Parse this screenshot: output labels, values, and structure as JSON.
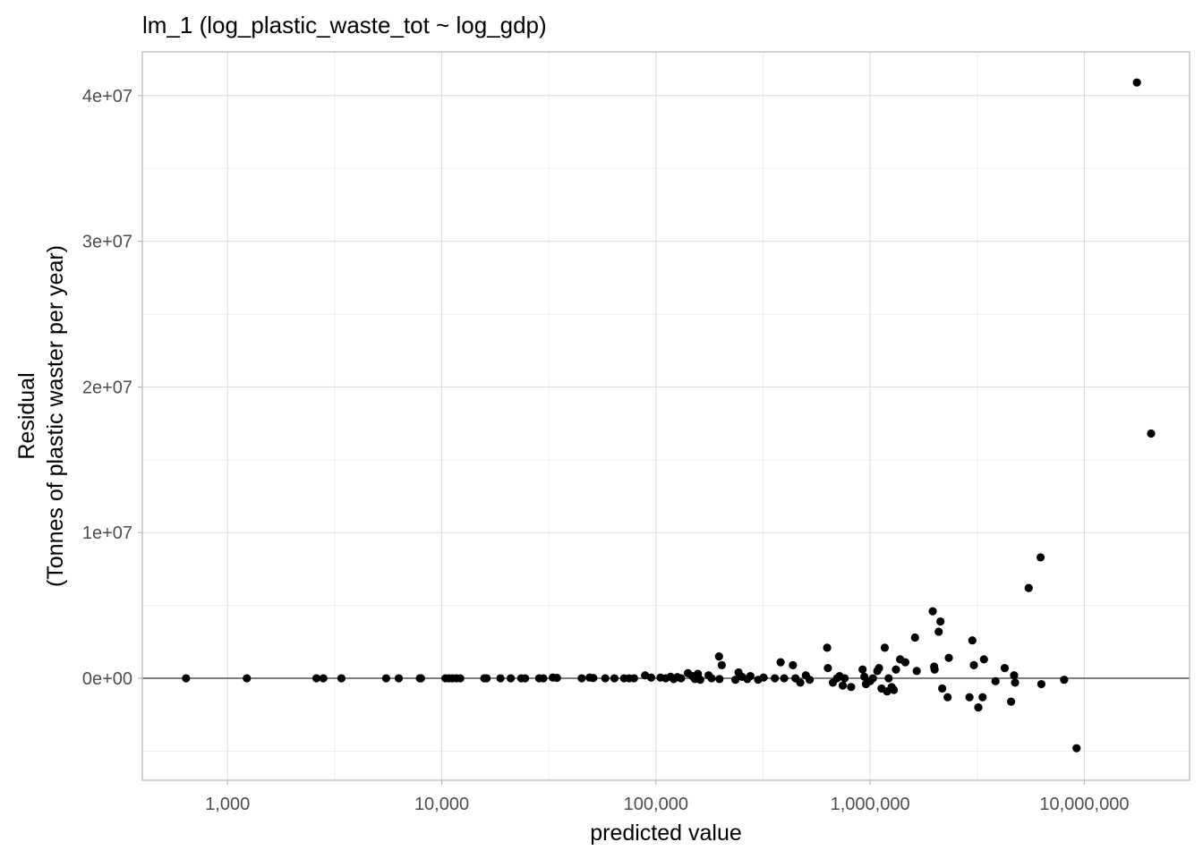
{
  "chart_data": {
    "type": "scatter",
    "title": "lm_1 (log_plastic_waste_tot ~ log_gdp)",
    "xlabel": "predicted value",
    "ylabel_lines": [
      "Residual",
      "(Tonnes of plastic waster per year)"
    ],
    "x_scale": "log10",
    "xlim": [
      400,
      31000000
    ],
    "ylim": [
      -7000000,
      43000000
    ],
    "x_ticks": [
      {
        "value": 1000,
        "label": "1,000"
      },
      {
        "value": 10000,
        "label": "10,000"
      },
      {
        "value": 100000,
        "label": "100,000"
      },
      {
        "value": 1000000,
        "label": "1,000,000"
      },
      {
        "value": 10000000,
        "label": "10,000,000"
      }
    ],
    "y_ticks": [
      {
        "value": 0,
        "label": "0e+00"
      },
      {
        "value": 10000000,
        "label": "1e+07"
      },
      {
        "value": 20000000,
        "label": "2e+07"
      },
      {
        "value": 30000000,
        "label": "3e+07"
      },
      {
        "value": 40000000,
        "label": "4e+07"
      }
    ],
    "hline": 0,
    "grid": true,
    "points": [
      {
        "x": 640,
        "y": 0
      },
      {
        "x": 1230,
        "y": 0
      },
      {
        "x": 2600,
        "y": 0
      },
      {
        "x": 2800,
        "y": 0
      },
      {
        "x": 3400,
        "y": 0
      },
      {
        "x": 5500,
        "y": 0
      },
      {
        "x": 6300,
        "y": 0
      },
      {
        "x": 7900,
        "y": 0
      },
      {
        "x": 8000,
        "y": 0
      },
      {
        "x": 10400,
        "y": 0
      },
      {
        "x": 10800,
        "y": 0
      },
      {
        "x": 11200,
        "y": 0
      },
      {
        "x": 11700,
        "y": 0
      },
      {
        "x": 12200,
        "y": 0
      },
      {
        "x": 15800,
        "y": 0
      },
      {
        "x": 16200,
        "y": 0
      },
      {
        "x": 18800,
        "y": 0
      },
      {
        "x": 21000,
        "y": 0
      },
      {
        "x": 23500,
        "y": 0
      },
      {
        "x": 24500,
        "y": 0
      },
      {
        "x": 28500,
        "y": 0
      },
      {
        "x": 29800,
        "y": 0
      },
      {
        "x": 33000,
        "y": 50000
      },
      {
        "x": 34500,
        "y": 30000
      },
      {
        "x": 45000,
        "y": 0
      },
      {
        "x": 49000,
        "y": 50000
      },
      {
        "x": 51000,
        "y": 20000
      },
      {
        "x": 58000,
        "y": 0
      },
      {
        "x": 64000,
        "y": 0
      },
      {
        "x": 71000,
        "y": 0
      },
      {
        "x": 75000,
        "y": 0
      },
      {
        "x": 79000,
        "y": 0
      },
      {
        "x": 89000,
        "y": 200000
      },
      {
        "x": 95000,
        "y": 50000
      },
      {
        "x": 105000,
        "y": 50000
      },
      {
        "x": 111000,
        "y": 0
      },
      {
        "x": 117000,
        "y": 100000
      },
      {
        "x": 121000,
        "y": -50000
      },
      {
        "x": 126000,
        "y": 80000
      },
      {
        "x": 131000,
        "y": 0
      },
      {
        "x": 141000,
        "y": 350000
      },
      {
        "x": 148000,
        "y": 150000
      },
      {
        "x": 152000,
        "y": -50000
      },
      {
        "x": 157000,
        "y": 300000
      },
      {
        "x": 161000,
        "y": -100000
      },
      {
        "x": 176000,
        "y": 200000
      },
      {
        "x": 182000,
        "y": 0
      },
      {
        "x": 197000,
        "y": 1500000
      },
      {
        "x": 203000,
        "y": 900000
      },
      {
        "x": 198000,
        "y": -50000
      },
      {
        "x": 235000,
        "y": -100000
      },
      {
        "x": 243000,
        "y": 400000
      },
      {
        "x": 252000,
        "y": 100000
      },
      {
        "x": 267000,
        "y": -50000
      },
      {
        "x": 276000,
        "y": 150000
      },
      {
        "x": 300000,
        "y": -100000
      },
      {
        "x": 318000,
        "y": 50000
      },
      {
        "x": 359000,
        "y": 0
      },
      {
        "x": 382000,
        "y": 1100000
      },
      {
        "x": 397000,
        "y": 0
      },
      {
        "x": 436000,
        "y": 900000
      },
      {
        "x": 448000,
        "y": 0
      },
      {
        "x": 472000,
        "y": -300000
      },
      {
        "x": 501000,
        "y": 200000
      },
      {
        "x": 522000,
        "y": -100000
      },
      {
        "x": 630000,
        "y": 2100000
      },
      {
        "x": 635000,
        "y": 700000
      },
      {
        "x": 670000,
        "y": -300000
      },
      {
        "x": 700000,
        "y": 0
      },
      {
        "x": 720000,
        "y": 150000
      },
      {
        "x": 745000,
        "y": -500000
      },
      {
        "x": 760000,
        "y": 0
      },
      {
        "x": 815000,
        "y": -600000
      },
      {
        "x": 922000,
        "y": 600000
      },
      {
        "x": 940000,
        "y": 100000
      },
      {
        "x": 956000,
        "y": -400000
      },
      {
        "x": 1000000,
        "y": -200000
      },
      {
        "x": 1030000,
        "y": 0
      },
      {
        "x": 1080000,
        "y": 500000
      },
      {
        "x": 1100000,
        "y": 700000
      },
      {
        "x": 1130000,
        "y": -700000
      },
      {
        "x": 1170000,
        "y": 2100000
      },
      {
        "x": 1200000,
        "y": -900000
      },
      {
        "x": 1220000,
        "y": 0
      },
      {
        "x": 1260000,
        "y": -600000
      },
      {
        "x": 1290000,
        "y": -800000
      },
      {
        "x": 1320000,
        "y": 600000
      },
      {
        "x": 1380000,
        "y": 1300000
      },
      {
        "x": 1460000,
        "y": 1100000
      },
      {
        "x": 1620000,
        "y": 2800000
      },
      {
        "x": 1650000,
        "y": 500000
      },
      {
        "x": 1960000,
        "y": 4600000
      },
      {
        "x": 1990000,
        "y": 800000
      },
      {
        "x": 2000000,
        "y": 600000
      },
      {
        "x": 2090000,
        "y": 3200000
      },
      {
        "x": 2130000,
        "y": 3900000
      },
      {
        "x": 2170000,
        "y": -700000
      },
      {
        "x": 2300000,
        "y": -1300000
      },
      {
        "x": 2330000,
        "y": 1400000
      },
      {
        "x": 2910000,
        "y": -1300000
      },
      {
        "x": 3000000,
        "y": 2600000
      },
      {
        "x": 3050000,
        "y": 900000
      },
      {
        "x": 3200000,
        "y": -2000000
      },
      {
        "x": 3350000,
        "y": -1300000
      },
      {
        "x": 3400000,
        "y": 1300000
      },
      {
        "x": 3850000,
        "y": -200000
      },
      {
        "x": 4250000,
        "y": 700000
      },
      {
        "x": 4550000,
        "y": -1600000
      },
      {
        "x": 4700000,
        "y": 200000
      },
      {
        "x": 4750000,
        "y": -300000
      },
      {
        "x": 5500000,
        "y": 6200000
      },
      {
        "x": 6250000,
        "y": 8300000
      },
      {
        "x": 6300000,
        "y": -400000
      },
      {
        "x": 8050000,
        "y": -100000
      },
      {
        "x": 9200000,
        "y": -4800000
      },
      {
        "x": 17600000,
        "y": 40900000
      },
      {
        "x": 20500000,
        "y": 16800000
      }
    ]
  }
}
